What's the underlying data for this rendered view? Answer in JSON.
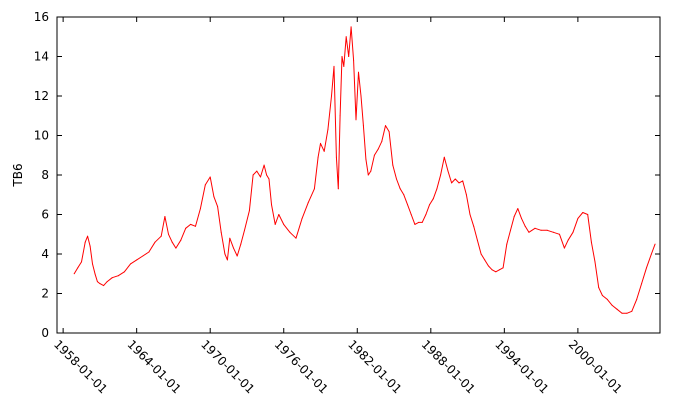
{
  "chart_data": {
    "type": "line",
    "title": "",
    "xlabel": "",
    "ylabel": "TB6",
    "xlim": [
      1957.5,
      2006.7
    ],
    "ylim": [
      0,
      16
    ],
    "grid": false,
    "xticks": [
      "1958-01-01",
      "1964-01-01",
      "1970-01-01",
      "1976-01-01",
      "1982-01-01",
      "1988-01-01",
      "1994-01-01",
      "2000-01-01"
    ],
    "yticks": [
      0,
      2,
      4,
      6,
      8,
      10,
      12,
      14,
      16
    ],
    "line_color": "#ff0000",
    "series": [
      {
        "name": "",
        "x": [
          1958.9,
          1959.2,
          1959.5,
          1959.8,
          1960.0,
          1960.2,
          1960.4,
          1960.6,
          1960.8,
          1961.0,
          1961.3,
          1961.6,
          1962.0,
          1962.5,
          1963.0,
          1963.5,
          1964.0,
          1964.5,
          1965.0,
          1965.5,
          1966.0,
          1966.3,
          1966.6,
          1966.9,
          1967.2,
          1967.6,
          1968.0,
          1968.4,
          1968.8,
          1969.2,
          1969.6,
          1970.0,
          1970.3,
          1970.6,
          1970.9,
          1971.2,
          1971.4,
          1971.6,
          1971.9,
          1972.2,
          1972.5,
          1972.8,
          1973.2,
          1973.5,
          1973.8,
          1974.1,
          1974.4,
          1974.6,
          1974.8,
          1975.0,
          1975.3,
          1975.6,
          1976.0,
          1976.5,
          1977.0,
          1977.5,
          1978.0,
          1978.5,
          1978.8,
          1979.0,
          1979.3,
          1979.6,
          1979.9,
          1980.1,
          1980.3,
          1980.45,
          1980.6,
          1980.75,
          1980.9,
          1981.1,
          1981.3,
          1981.5,
          1981.7,
          1981.9,
          1982.1,
          1982.3,
          1982.5,
          1982.7,
          1982.9,
          1983.1,
          1983.4,
          1983.7,
          1984.0,
          1984.3,
          1984.6,
          1984.9,
          1985.2,
          1985.5,
          1985.8,
          1986.1,
          1986.4,
          1986.7,
          1987.0,
          1987.3,
          1987.6,
          1987.9,
          1988.2,
          1988.5,
          1988.8,
          1989.1,
          1989.4,
          1989.7,
          1990.0,
          1990.3,
          1990.6,
          1990.9,
          1991.2,
          1991.5,
          1991.8,
          1992.1,
          1992.4,
          1992.7,
          1993.0,
          1993.3,
          1993.6,
          1993.9,
          1994.2,
          1994.5,
          1994.8,
          1995.1,
          1995.4,
          1995.7,
          1996.0,
          1996.5,
          1997.0,
          1997.5,
          1998.0,
          1998.5,
          1998.9,
          1999.2,
          1999.6,
          2000.0,
          2000.4,
          2000.8,
          2001.1,
          2001.4,
          2001.7,
          2002.0,
          2002.4,
          2002.8,
          2003.2,
          2003.6,
          2004.0,
          2004.4,
          2004.8,
          2005.2,
          2005.6,
          2006.0,
          2006.3
        ],
        "y": [
          3.0,
          3.3,
          3.6,
          4.6,
          4.9,
          4.4,
          3.5,
          3.0,
          2.6,
          2.5,
          2.4,
          2.6,
          2.8,
          2.9,
          3.1,
          3.5,
          3.7,
          3.9,
          4.1,
          4.6,
          4.9,
          5.9,
          5.0,
          4.6,
          4.3,
          4.7,
          5.3,
          5.5,
          5.4,
          6.3,
          7.5,
          7.9,
          6.9,
          6.4,
          5.1,
          4.0,
          3.7,
          4.8,
          4.3,
          3.9,
          4.5,
          5.2,
          6.2,
          8.0,
          8.2,
          7.9,
          8.5,
          8.0,
          7.8,
          6.5,
          5.5,
          6.0,
          5.5,
          5.1,
          4.8,
          5.8,
          6.6,
          7.3,
          8.9,
          9.6,
          9.2,
          10.3,
          12.0,
          13.5,
          8.9,
          7.3,
          11.0,
          14.0,
          13.5,
          15.0,
          14.0,
          15.5,
          13.8,
          10.8,
          13.2,
          12.0,
          10.5,
          8.8,
          8.0,
          8.2,
          9.0,
          9.3,
          9.7,
          10.5,
          10.2,
          8.5,
          7.8,
          7.3,
          7.0,
          6.5,
          6.0,
          5.5,
          5.6,
          5.6,
          6.0,
          6.5,
          6.8,
          7.3,
          8.0,
          8.9,
          8.2,
          7.6,
          7.8,
          7.6,
          7.7,
          7.0,
          6.0,
          5.4,
          4.7,
          4.0,
          3.7,
          3.4,
          3.2,
          3.1,
          3.2,
          3.3,
          4.5,
          5.2,
          5.9,
          6.3,
          5.8,
          5.4,
          5.1,
          5.3,
          5.2,
          5.2,
          5.1,
          5.0,
          4.3,
          4.7,
          5.1,
          5.8,
          6.1,
          6.0,
          4.6,
          3.6,
          2.3,
          1.9,
          1.7,
          1.4,
          1.2,
          1.0,
          1.0,
          1.1,
          1.7,
          2.5,
          3.3,
          4.0,
          4.5
        ]
      }
    ]
  }
}
